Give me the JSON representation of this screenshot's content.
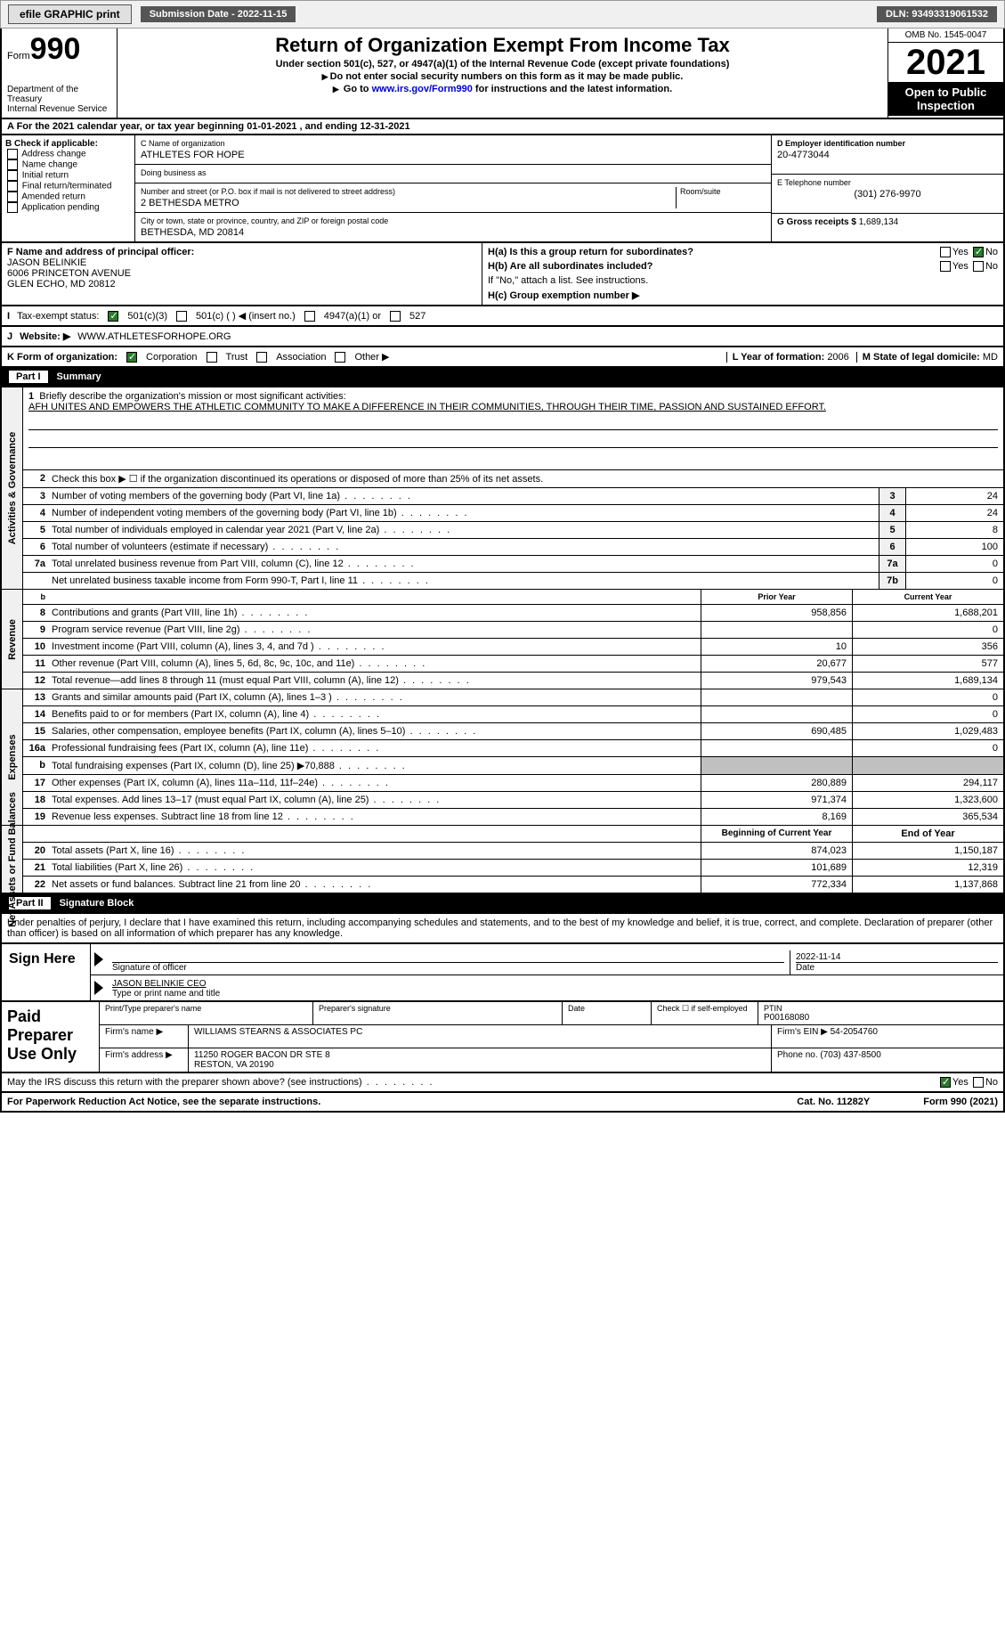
{
  "top": {
    "efile": "efile GRAPHIC print",
    "sub_label": "Submission Date - 2022-11-15",
    "dln": "DLN: 93493319061532"
  },
  "header": {
    "form_label": "Form",
    "form_num": "990",
    "title": "Return of Organization Exempt From Income Tax",
    "subtitle": "Under section 501(c), 527, or 4947(a)(1) of the Internal Revenue Code (except private foundations)",
    "note1": "Do not enter social security numbers on this form as it may be made public.",
    "note2_pre": "Go to ",
    "note2_link": "www.irs.gov/Form990",
    "note2_post": " for instructions and the latest information.",
    "dept": "Department of the Treasury",
    "irs": "Internal Revenue Service",
    "omb": "OMB No. 1545-0047",
    "year": "2021",
    "open": "Open to Public Inspection"
  },
  "row_a": "A For the 2021 calendar year, or tax year beginning 01-01-2021    , and ending 12-31-2021",
  "b": {
    "label": "B Check if applicable:",
    "opts": [
      "Address change",
      "Name change",
      "Initial return",
      "Final return/terminated",
      "Amended return",
      "Application pending"
    ]
  },
  "c": {
    "name_lbl": "C Name of organization",
    "name": "ATHLETES FOR HOPE",
    "dba_lbl": "Doing business as",
    "dba": "",
    "addr_lbl": "Number and street (or P.O. box if mail is not delivered to street address)",
    "room_lbl": "Room/suite",
    "addr": "2 BETHESDA METRO",
    "city_lbl": "City or town, state or province, country, and ZIP or foreign postal code",
    "city": "BETHESDA, MD  20814"
  },
  "d": {
    "ein_lbl": "D Employer identification number",
    "ein": "20-4773044",
    "phone_lbl": "E Telephone number",
    "phone": "(301) 276-9970",
    "gross_lbl": "G Gross receipts $",
    "gross": "1,689,134"
  },
  "f": {
    "lbl": "F Name and address of principal officer:",
    "name": "JASON BELINKIE",
    "addr1": "6006 PRINCETON AVENUE",
    "addr2": "GLEN ECHO, MD  20812"
  },
  "h": {
    "a_lbl": "H(a)  Is this a group return for subordinates?",
    "a_yes": "Yes",
    "a_no": "No",
    "b_lbl": "H(b)  Are all subordinates included?",
    "b_note": "If \"No,\" attach a list. See instructions.",
    "c_lbl": "H(c)  Group exemption number ▶"
  },
  "tax": {
    "lbl": "Tax-exempt status:",
    "o1": "501(c)(3)",
    "o2": "501(c) (  ) ◀ (insert no.)",
    "o3": "4947(a)(1) or",
    "o4": "527"
  },
  "web": {
    "lbl": "Website: ▶",
    "val": "WWW.ATHLETESFORHOPE.ORG"
  },
  "k": {
    "lbl": "K Form of organization:",
    "o1": "Corporation",
    "o2": "Trust",
    "o3": "Association",
    "o4": "Other ▶"
  },
  "l": {
    "lbl": "L Year of formation:",
    "val": "2006"
  },
  "m": {
    "lbl": "M State of legal domicile:",
    "val": "MD"
  },
  "part1": {
    "hdr": "Part I",
    "title": "Summary",
    "line1_lbl": "Briefly describe the organization's mission or most significant activities:",
    "line1_val": "AFH UNITES AND EMPOWERS THE ATHLETIC COMMUNITY TO MAKE A DIFFERENCE IN THEIR COMMUNITIES, THROUGH THEIR TIME, PASSION AND SUSTAINED EFFORT.",
    "line2": "Check this box ▶ ☐ if the organization discontinued its operations or disposed of more than 25% of its net assets.",
    "sides": [
      "Activities & Governance",
      "Revenue",
      "Expenses",
      "Net Assets or Fund Balances"
    ],
    "lines_gov": [
      {
        "n": "3",
        "t": "Number of voting members of the governing body (Part VI, line 1a)",
        "b": "3",
        "v": "24"
      },
      {
        "n": "4",
        "t": "Number of independent voting members of the governing body (Part VI, line 1b)",
        "b": "4",
        "v": "24"
      },
      {
        "n": "5",
        "t": "Total number of individuals employed in calendar year 2021 (Part V, line 2a)",
        "b": "5",
        "v": "8"
      },
      {
        "n": "6",
        "t": "Total number of volunteers (estimate if necessary)",
        "b": "6",
        "v": "100"
      },
      {
        "n": "7a",
        "t": "Total unrelated business revenue from Part VIII, column (C), line 12",
        "b": "7a",
        "v": "0"
      },
      {
        "n": "",
        "t": "Net unrelated business taxable income from Form 990-T, Part I, line 11",
        "b": "7b",
        "v": "0"
      }
    ],
    "prior_lbl": "Prior Year",
    "curr_lbl": "Current Year",
    "lines_rev": [
      {
        "n": "8",
        "t": "Contributions and grants (Part VIII, line 1h)",
        "p": "958,856",
        "c": "1,688,201"
      },
      {
        "n": "9",
        "t": "Program service revenue (Part VIII, line 2g)",
        "p": "",
        "c": "0"
      },
      {
        "n": "10",
        "t": "Investment income (Part VIII, column (A), lines 3, 4, and 7d )",
        "p": "10",
        "c": "356"
      },
      {
        "n": "11",
        "t": "Other revenue (Part VIII, column (A), lines 5, 6d, 8c, 9c, 10c, and 11e)",
        "p": "20,677",
        "c": "577"
      },
      {
        "n": "12",
        "t": "Total revenue—add lines 8 through 11 (must equal Part VIII, column (A), line 12)",
        "p": "979,543",
        "c": "1,689,134"
      }
    ],
    "lines_exp": [
      {
        "n": "13",
        "t": "Grants and similar amounts paid (Part IX, column (A), lines 1–3 )",
        "p": "",
        "c": "0"
      },
      {
        "n": "14",
        "t": "Benefits paid to or for members (Part IX, column (A), line 4)",
        "p": "",
        "c": "0"
      },
      {
        "n": "15",
        "t": "Salaries, other compensation, employee benefits (Part IX, column (A), lines 5–10)",
        "p": "690,485",
        "c": "1,029,483"
      },
      {
        "n": "16a",
        "t": "Professional fundraising fees (Part IX, column (A), line 11e)",
        "p": "",
        "c": "0"
      },
      {
        "n": "b",
        "t": "Total fundraising expenses (Part IX, column (D), line 25) ▶70,888",
        "p": "shaded",
        "c": "shaded"
      },
      {
        "n": "17",
        "t": "Other expenses (Part IX, column (A), lines 11a–11d, 11f–24e)",
        "p": "280,889",
        "c": "294,117"
      },
      {
        "n": "18",
        "t": "Total expenses. Add lines 13–17 (must equal Part IX, column (A), line 25)",
        "p": "971,374",
        "c": "1,323,600"
      },
      {
        "n": "19",
        "t": "Revenue less expenses. Subtract line 18 from line 12",
        "p": "8,169",
        "c": "365,534"
      }
    ],
    "begin_lbl": "Beginning of Current Year",
    "end_lbl": "End of Year",
    "lines_net": [
      {
        "n": "20",
        "t": "Total assets (Part X, line 16)",
        "p": "874,023",
        "c": "1,150,187"
      },
      {
        "n": "21",
        "t": "Total liabilities (Part X, line 26)",
        "p": "101,689",
        "c": "12,319"
      },
      {
        "n": "22",
        "t": "Net assets or fund balances. Subtract line 21 from line 20",
        "p": "772,334",
        "c": "1,137,868"
      }
    ]
  },
  "part2": {
    "hdr": "Part II",
    "title": "Signature Block",
    "decl": "Under penalties of perjury, I declare that I have examined this return, including accompanying schedules and statements, and to the best of my knowledge and belief, it is true, correct, and complete. Declaration of preparer (other than officer) is based on all information of which preparer has any knowledge."
  },
  "sign": {
    "left": "Sign Here",
    "sig_lbl": "Signature of officer",
    "date_lbl": "Date",
    "date": "2022-11-14",
    "name_lbl": "Type or print name and title",
    "name": "JASON BELINKIE  CEO"
  },
  "prep": {
    "left": "Paid Preparer Use Only",
    "name_lbl": "Print/Type preparer's name",
    "name": "",
    "sig_lbl": "Preparer's signature",
    "date_lbl": "Date",
    "chk_lbl": "Check ☐ if self-employed",
    "ptin_lbl": "PTIN",
    "ptin": "P00168080",
    "firm_lbl": "Firm's name   ▶",
    "firm": "WILLIAMS STEARNS & ASSOCIATES PC",
    "ein_lbl": "Firm's EIN ▶",
    "ein": "54-2054760",
    "addr_lbl": "Firm's address ▶",
    "addr1": "11250 ROGER BACON DR STE 8",
    "addr2": "RESTON, VA  20190",
    "phone_lbl": "Phone no.",
    "phone": "(703) 437-8500"
  },
  "footer": {
    "q": "May the IRS discuss this return with the preparer shown above? (see instructions)",
    "yes": "Yes",
    "no": "No",
    "pra": "For Paperwork Reduction Act Notice, see the separate instructions.",
    "cat": "Cat. No. 11282Y",
    "form": "Form 990 (2021)"
  }
}
